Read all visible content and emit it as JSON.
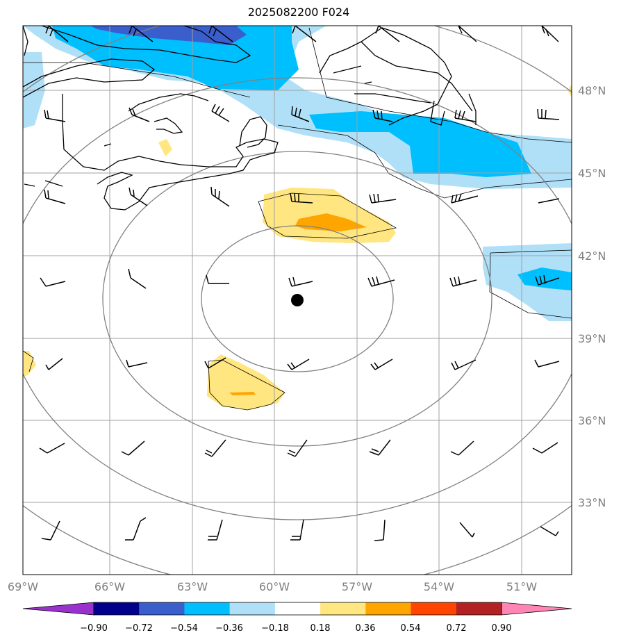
{
  "title": "2025082200 F024",
  "map": {
    "lon_ticks": [
      "69°W",
      "66°W",
      "63°W",
      "60°W",
      "57°W",
      "54°W",
      "51°W"
    ],
    "lat_ticks": [
      "48°N",
      "45°N",
      "42°N",
      "39°N",
      "36°N",
      "33°N"
    ],
    "storm_center": {
      "lon": -59.1,
      "lat": 40.4
    },
    "range_rings": 4
  },
  "colorbar": {
    "ticks": [
      "−0.90",
      "−0.72",
      "−0.54",
      "−0.36",
      "−0.18",
      "0.18",
      "0.36",
      "0.54",
      "0.72",
      "0.90"
    ],
    "colors": [
      "#9932cc",
      "#00008b",
      "#3a5fcd",
      "#00bfff",
      "#b0e0f8",
      "#ffffff",
      "#ffe680",
      "#ffa500",
      "#ff4500",
      "#b22222",
      "#ff85b4"
    ]
  },
  "colors": {
    "grid": "#a0a0a0",
    "rings": "#808080",
    "coast": "#000000"
  }
}
